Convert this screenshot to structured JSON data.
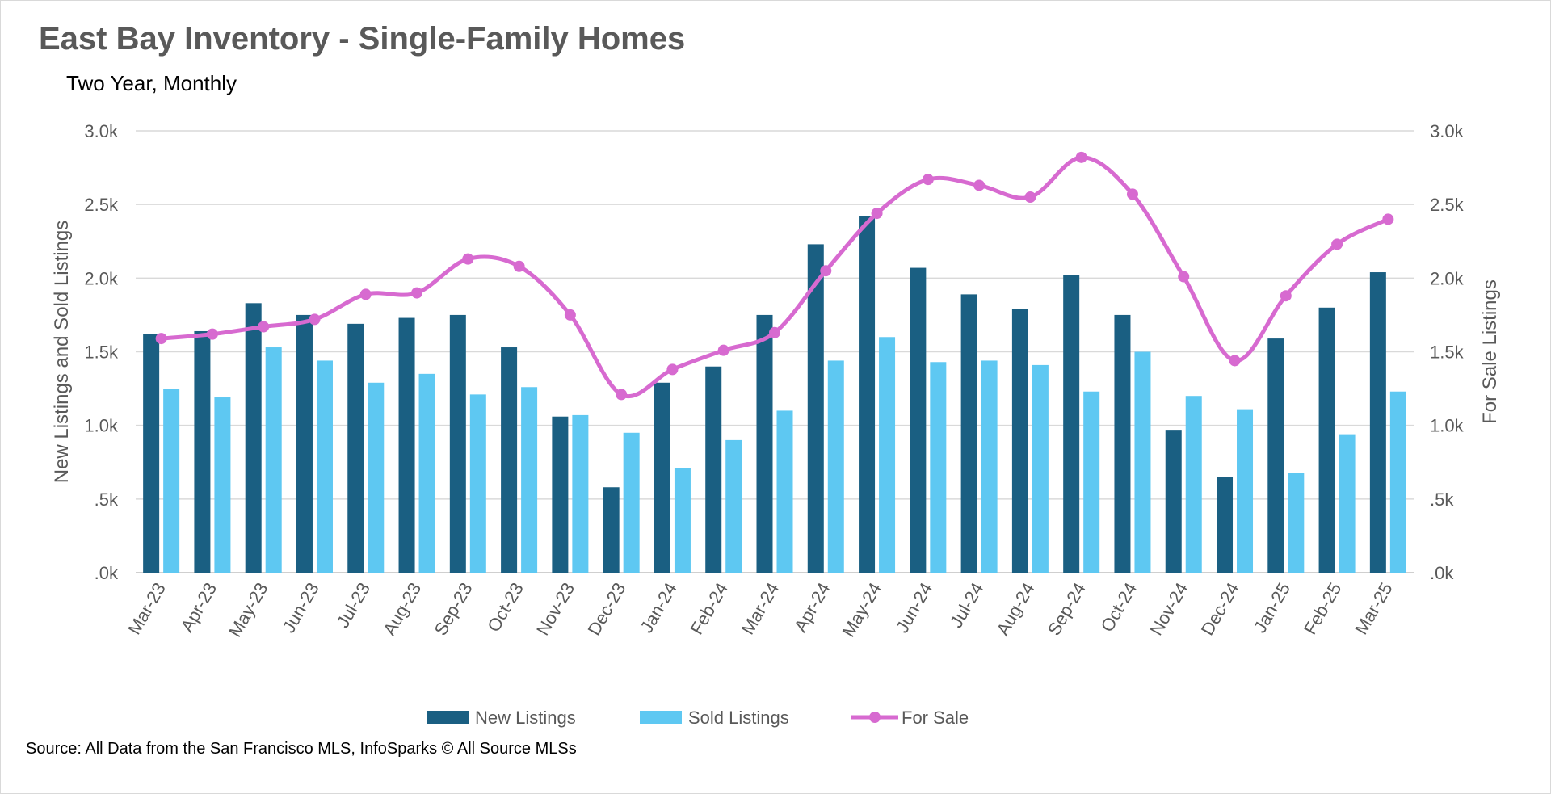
{
  "title": "East Bay Inventory - Single-Family Homes",
  "subtitle": "Two Year, Monthly",
  "source": "Source: All Data from the San Francisco MLS, InfoSparks © All Source MLSs",
  "colors": {
    "new_listings": "#1a5f82",
    "sold_listings": "#5ec8f2",
    "for_sale": "#d76ad0",
    "grid": "#d9d9d9",
    "text": "#595959"
  },
  "chart_data": {
    "type": "bar",
    "combo": "bar+line",
    "categories": [
      "Mar-23",
      "Apr-23",
      "May-23",
      "Jun-23",
      "Jul-23",
      "Aug-23",
      "Sep-23",
      "Oct-23",
      "Nov-23",
      "Dec-23",
      "Jan-24",
      "Feb-24",
      "Mar-24",
      "Apr-24",
      "May-24",
      "Jun-24",
      "Jul-24",
      "Aug-24",
      "Sep-24",
      "Oct-24",
      "Nov-24",
      "Dec-24",
      "Jan-25",
      "Feb-25",
      "Mar-25"
    ],
    "series": [
      {
        "name": "New Listings",
        "kind": "bar",
        "axis": "left",
        "values": [
          1620,
          1640,
          1830,
          1750,
          1690,
          1730,
          1750,
          1530,
          1060,
          580,
          1290,
          1400,
          1750,
          2230,
          2420,
          2070,
          1890,
          1790,
          2020,
          1750,
          970,
          650,
          1590,
          1800,
          2040
        ]
      },
      {
        "name": "Sold Listings",
        "kind": "bar",
        "axis": "left",
        "values": [
          1250,
          1190,
          1530,
          1440,
          1290,
          1350,
          1210,
          1260,
          1070,
          950,
          710,
          900,
          1100,
          1440,
          1600,
          1430,
          1440,
          1410,
          1230,
          1500,
          1200,
          1110,
          680,
          940,
          1230
        ]
      },
      {
        "name": "For Sale",
        "kind": "line",
        "axis": "right",
        "values": [
          1590,
          1620,
          1670,
          1720,
          1890,
          1900,
          2130,
          2080,
          1750,
          1210,
          1380,
          1510,
          1630,
          2050,
          2440,
          2670,
          2630,
          2550,
          2820,
          2570,
          2010,
          1440,
          1880,
          2230,
          2400
        ]
      }
    ],
    "ylabel_left": "New Listings and Sold Listings",
    "ylabel_right": "For Sale Listings",
    "ylim_left": [
      0,
      3000
    ],
    "ylim_right": [
      0,
      3000
    ],
    "y_ticks": [
      ".0k",
      ".5k",
      "1.0k",
      "1.5k",
      "2.0k",
      "2.5k",
      "3.0k"
    ],
    "grid": true,
    "legend_position": "bottom-center"
  }
}
